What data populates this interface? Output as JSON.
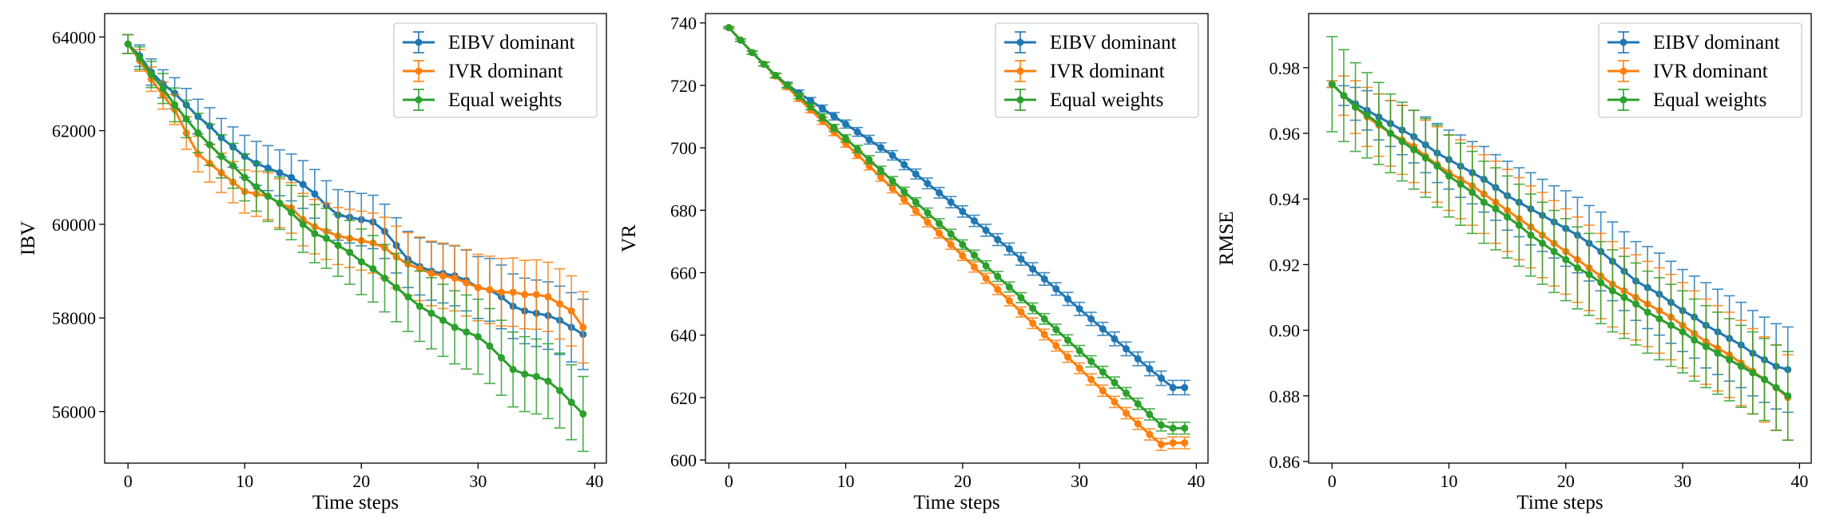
{
  "figure": {
    "colors": {
      "EIBV dominant": "#1f77b4",
      "IVR dominant": "#ff7f0e",
      "Equal weights": "#2ca02c"
    }
  },
  "chart_data": [
    {
      "type": "line",
      "title": "",
      "xlabel": "Time steps",
      "ylabel": "IBV",
      "xlim": [
        -2,
        41
      ],
      "ylim": [
        54900,
        64500
      ],
      "xticks": [
        0,
        10,
        20,
        30,
        40
      ],
      "yticks": [
        56000,
        58000,
        60000,
        62000,
        64000
      ],
      "grid": false,
      "error_bars": true,
      "legend_position": "top-right",
      "x": [
        0,
        1,
        2,
        3,
        4,
        5,
        6,
        7,
        8,
        9,
        10,
        11,
        12,
        13,
        14,
        15,
        16,
        17,
        18,
        19,
        20,
        21,
        22,
        23,
        24,
        25,
        26,
        27,
        28,
        29,
        30,
        31,
        32,
        33,
        34,
        35,
        36,
        37,
        38,
        39
      ],
      "series": [
        {
          "name": "EIBV dominant",
          "values": [
            63850,
            63600,
            63250,
            63000,
            62800,
            62550,
            62300,
            62100,
            61850,
            61650,
            61450,
            61300,
            61200,
            61100,
            61000,
            60850,
            60650,
            60400,
            60200,
            60150,
            60100,
            60050,
            59850,
            59550,
            59250,
            59100,
            59000,
            58950,
            58900,
            58800,
            58650,
            58600,
            58450,
            58250,
            58150,
            58100,
            58050,
            57950,
            57800,
            57650
          ],
          "errors": [
            200,
            230,
            280,
            300,
            330,
            350,
            370,
            390,
            410,
            430,
            450,
            470,
            480,
            490,
            500,
            510,
            520,
            530,
            540,
            550,
            560,
            570,
            580,
            590,
            600,
            610,
            620,
            630,
            640,
            650,
            660,
            670,
            680,
            690,
            700,
            710,
            720,
            730,
            740,
            750
          ]
        },
        {
          "name": "IVR dominant",
          "values": [
            63850,
            63500,
            63100,
            62750,
            62450,
            61950,
            61500,
            61300,
            61100,
            60900,
            60700,
            60650,
            60600,
            60450,
            60350,
            60100,
            59950,
            59850,
            59750,
            59700,
            59650,
            59600,
            59500,
            59300,
            59150,
            59050,
            58950,
            58900,
            58850,
            58750,
            58650,
            58600,
            58550,
            58550,
            58500,
            58500,
            58450,
            58300,
            58150,
            57800
          ],
          "errors": [
            200,
            230,
            260,
            290,
            320,
            350,
            380,
            400,
            420,
            440,
            460,
            480,
            500,
            520,
            540,
            560,
            580,
            600,
            610,
            620,
            630,
            640,
            650,
            660,
            670,
            680,
            690,
            700,
            700,
            710,
            710,
            720,
            720,
            730,
            730,
            740,
            740,
            750,
            750,
            760
          ]
        },
        {
          "name": "Equal weights",
          "values": [
            63850,
            63550,
            63200,
            62900,
            62550,
            62250,
            61950,
            61700,
            61450,
            61250,
            61000,
            60800,
            60600,
            60450,
            60250,
            60000,
            59800,
            59700,
            59550,
            59400,
            59200,
            59050,
            58850,
            58650,
            58450,
            58250,
            58100,
            57950,
            57800,
            57700,
            57600,
            57400,
            57150,
            56900,
            56800,
            56750,
            56650,
            56450,
            56200,
            55950
          ],
          "errors": [
            200,
            240,
            280,
            320,
            360,
            400,
            420,
            440,
            460,
            480,
            500,
            520,
            540,
            560,
            580,
            600,
            620,
            640,
            660,
            680,
            700,
            710,
            720,
            730,
            740,
            750,
            760,
            770,
            780,
            790,
            800,
            800,
            800,
            800,
            800,
            800,
            800,
            800,
            800,
            800
          ]
        }
      ]
    },
    {
      "type": "line",
      "title": "",
      "xlabel": "Time steps",
      "ylabel": "VR",
      "xlim": [
        -2,
        41
      ],
      "ylim": [
        599,
        743
      ],
      "xticks": [
        0,
        10,
        20,
        30,
        40
      ],
      "yticks": [
        600,
        620,
        640,
        660,
        680,
        700,
        720,
        740
      ],
      "grid": false,
      "error_bars": true,
      "legend_position": "top-right",
      "x": [
        0,
        1,
        2,
        3,
        4,
        5,
        6,
        7,
        8,
        9,
        10,
        11,
        12,
        13,
        14,
        15,
        16,
        17,
        18,
        19,
        20,
        21,
        22,
        23,
        24,
        25,
        26,
        27,
        28,
        29,
        30,
        31,
        32,
        33,
        34,
        35,
        36,
        37,
        38,
        39
      ],
      "series": [
        {
          "name": "EIBV dominant",
          "values": [
            738.5,
            734.5,
            730.5,
            726.8,
            723.2,
            720.2,
            717.6,
            715.1,
            712.6,
            710.1,
            707.6,
            705.1,
            702.6,
            700.1,
            697.6,
            694.6,
            691.6,
            688.6,
            685.6,
            682.6,
            679.6,
            676.6,
            673.6,
            670.6,
            667.6,
            664.4,
            661.2,
            658.0,
            654.8,
            651.6,
            648.4,
            645.2,
            642.0,
            638.8,
            635.6,
            632.4,
            629.2,
            626.2,
            623.2,
            623.2
          ],
          "errors": [
            0.3,
            0.4,
            0.5,
            0.6,
            0.7,
            0.8,
            0.9,
            1.0,
            1.1,
            1.2,
            1.3,
            1.4,
            1.4,
            1.5,
            1.5,
            1.6,
            1.6,
            1.7,
            1.7,
            1.8,
            1.8,
            1.8,
            1.9,
            1.9,
            1.9,
            2.0,
            2.0,
            2.0,
            2.0,
            2.1,
            2.1,
            2.1,
            2.1,
            2.2,
            2.2,
            2.2,
            2.2,
            2.3,
            2.3,
            2.3
          ]
        },
        {
          "name": "IVR dominant",
          "values": [
            738.5,
            734.5,
            730.5,
            726.8,
            723.0,
            719.5,
            715.8,
            712.2,
            708.6,
            705.0,
            701.4,
            697.8,
            694.2,
            690.6,
            687.0,
            683.4,
            679.8,
            676.2,
            672.6,
            669.0,
            665.4,
            661.8,
            658.2,
            654.6,
            651.0,
            647.4,
            643.8,
            640.2,
            636.6,
            633.0,
            629.4,
            625.8,
            622.2,
            618.6,
            615.0,
            611.6,
            608.2,
            605.0,
            605.5,
            605.5
          ],
          "errors": [
            0.3,
            0.4,
            0.5,
            0.6,
            0.7,
            0.8,
            0.9,
            1.0,
            1.1,
            1.1,
            1.2,
            1.2,
            1.3,
            1.3,
            1.4,
            1.4,
            1.4,
            1.5,
            1.5,
            1.5,
            1.5,
            1.6,
            1.6,
            1.6,
            1.6,
            1.6,
            1.7,
            1.7,
            1.7,
            1.7,
            1.7,
            1.8,
            1.8,
            1.8,
            1.8,
            1.8,
            1.8,
            1.9,
            1.9,
            1.9
          ]
        },
        {
          "name": "Equal weights",
          "values": [
            738.5,
            734.5,
            730.5,
            726.8,
            723.2,
            720.0,
            716.6,
            713.2,
            709.8,
            706.4,
            703.0,
            699.6,
            696.2,
            692.8,
            689.4,
            686.0,
            682.6,
            679.2,
            675.8,
            672.4,
            669.0,
            665.6,
            662.2,
            658.8,
            655.4,
            652.0,
            648.6,
            645.2,
            641.8,
            638.4,
            635.0,
            631.6,
            628.2,
            624.8,
            621.4,
            618.0,
            614.6,
            611.2,
            610.2,
            610.2
          ],
          "errors": [
            0.3,
            0.4,
            0.5,
            0.6,
            0.7,
            0.8,
            0.9,
            1.0,
            1.1,
            1.1,
            1.2,
            1.2,
            1.3,
            1.3,
            1.4,
            1.4,
            1.4,
            1.5,
            1.5,
            1.5,
            1.5,
            1.6,
            1.6,
            1.6,
            1.6,
            1.6,
            1.7,
            1.7,
            1.7,
            1.7,
            1.7,
            1.8,
            1.8,
            1.8,
            1.8,
            1.8,
            1.8,
            1.9,
            1.9,
            1.9
          ]
        }
      ]
    },
    {
      "type": "line",
      "title": "",
      "xlabel": "Time steps",
      "ylabel": "RMSE",
      "xlim": [
        -2,
        41
      ],
      "ylim": [
        0.8595,
        0.9965
      ],
      "xticks": [
        0,
        10,
        20,
        30,
        40
      ],
      "yticks": [
        0.86,
        0.88,
        0.9,
        0.92,
        0.94,
        0.96,
        0.98
      ],
      "grid": false,
      "error_bars": true,
      "legend_position": "top-right",
      "x": [
        0,
        1,
        2,
        3,
        4,
        5,
        6,
        7,
        8,
        9,
        10,
        11,
        12,
        13,
        14,
        15,
        16,
        17,
        18,
        19,
        20,
        21,
        22,
        23,
        24,
        25,
        26,
        27,
        28,
        29,
        30,
        31,
        32,
        33,
        34,
        35,
        36,
        37,
        38,
        39
      ],
      "series": [
        {
          "name": "EIBV dominant",
          "values": [
            0.975,
            0.9715,
            0.969,
            0.967,
            0.965,
            0.963,
            0.961,
            0.959,
            0.9565,
            0.954,
            0.952,
            0.95,
            0.948,
            0.946,
            0.9435,
            0.941,
            0.939,
            0.937,
            0.935,
            0.933,
            0.931,
            0.929,
            0.9265,
            0.924,
            0.921,
            0.918,
            0.915,
            0.913,
            0.911,
            0.9085,
            0.906,
            0.904,
            0.9015,
            0.8995,
            0.8975,
            0.8955,
            0.893,
            0.891,
            0.889,
            0.888
          ],
          "errors": [
            0.001,
            0.003,
            0.005,
            0.006,
            0.007,
            0.007,
            0.0075,
            0.008,
            0.0085,
            0.009,
            0.009,
            0.0095,
            0.0095,
            0.01,
            0.01,
            0.0105,
            0.0105,
            0.011,
            0.011,
            0.011,
            0.0115,
            0.0115,
            0.0115,
            0.012,
            0.012,
            0.012,
            0.012,
            0.0125,
            0.0125,
            0.0125,
            0.0125,
            0.0125,
            0.013,
            0.013,
            0.013,
            0.013,
            0.013,
            0.013,
            0.013,
            0.013
          ]
        },
        {
          "name": "IVR dominant",
          "values": [
            0.975,
            0.9715,
            0.968,
            0.965,
            0.9625,
            0.96,
            0.958,
            0.956,
            0.953,
            0.9505,
            0.948,
            0.946,
            0.944,
            0.9415,
            0.939,
            0.9365,
            0.934,
            0.9315,
            0.929,
            0.9265,
            0.924,
            0.9215,
            0.919,
            0.9165,
            0.914,
            0.912,
            0.91,
            0.908,
            0.906,
            0.904,
            0.9015,
            0.899,
            0.8965,
            0.8945,
            0.8925,
            0.89,
            0.8875,
            0.885,
            0.8825,
            0.8795
          ],
          "errors": [
            0.001,
            0.006,
            0.008,
            0.009,
            0.0095,
            0.01,
            0.0105,
            0.011,
            0.011,
            0.0115,
            0.0115,
            0.012,
            0.012,
            0.012,
            0.0125,
            0.0125,
            0.0125,
            0.0125,
            0.013,
            0.013,
            0.013,
            0.013,
            0.013,
            0.013,
            0.013,
            0.013,
            0.013,
            0.013,
            0.013,
            0.013,
            0.013,
            0.013,
            0.013,
            0.013,
            0.013,
            0.013,
            0.013,
            0.013,
            0.013,
            0.013
          ]
        },
        {
          "name": "Equal weights",
          "values": [
            0.975,
            0.9715,
            0.968,
            0.9655,
            0.963,
            0.96,
            0.9575,
            0.955,
            0.9525,
            0.95,
            0.947,
            0.9445,
            0.942,
            0.939,
            0.937,
            0.9345,
            0.932,
            0.929,
            0.9265,
            0.924,
            0.9215,
            0.919,
            0.917,
            0.9145,
            0.912,
            0.91,
            0.908,
            0.9055,
            0.9035,
            0.9015,
            0.8995,
            0.897,
            0.895,
            0.893,
            0.891,
            0.889,
            0.887,
            0.885,
            0.8825,
            0.88
          ],
          "errors": [
            0.0145,
            0.014,
            0.0135,
            0.013,
            0.0125,
            0.012,
            0.012,
            0.012,
            0.012,
            0.0125,
            0.0125,
            0.0125,
            0.0125,
            0.0125,
            0.0125,
            0.0125,
            0.0125,
            0.0125,
            0.0125,
            0.0125,
            0.0125,
            0.0125,
            0.0125,
            0.0125,
            0.0125,
            0.0125,
            0.0125,
            0.0125,
            0.0125,
            0.0125,
            0.0125,
            0.0125,
            0.0125,
            0.0125,
            0.0125,
            0.0125,
            0.0125,
            0.0125,
            0.013,
            0.0135
          ]
        }
      ]
    }
  ]
}
